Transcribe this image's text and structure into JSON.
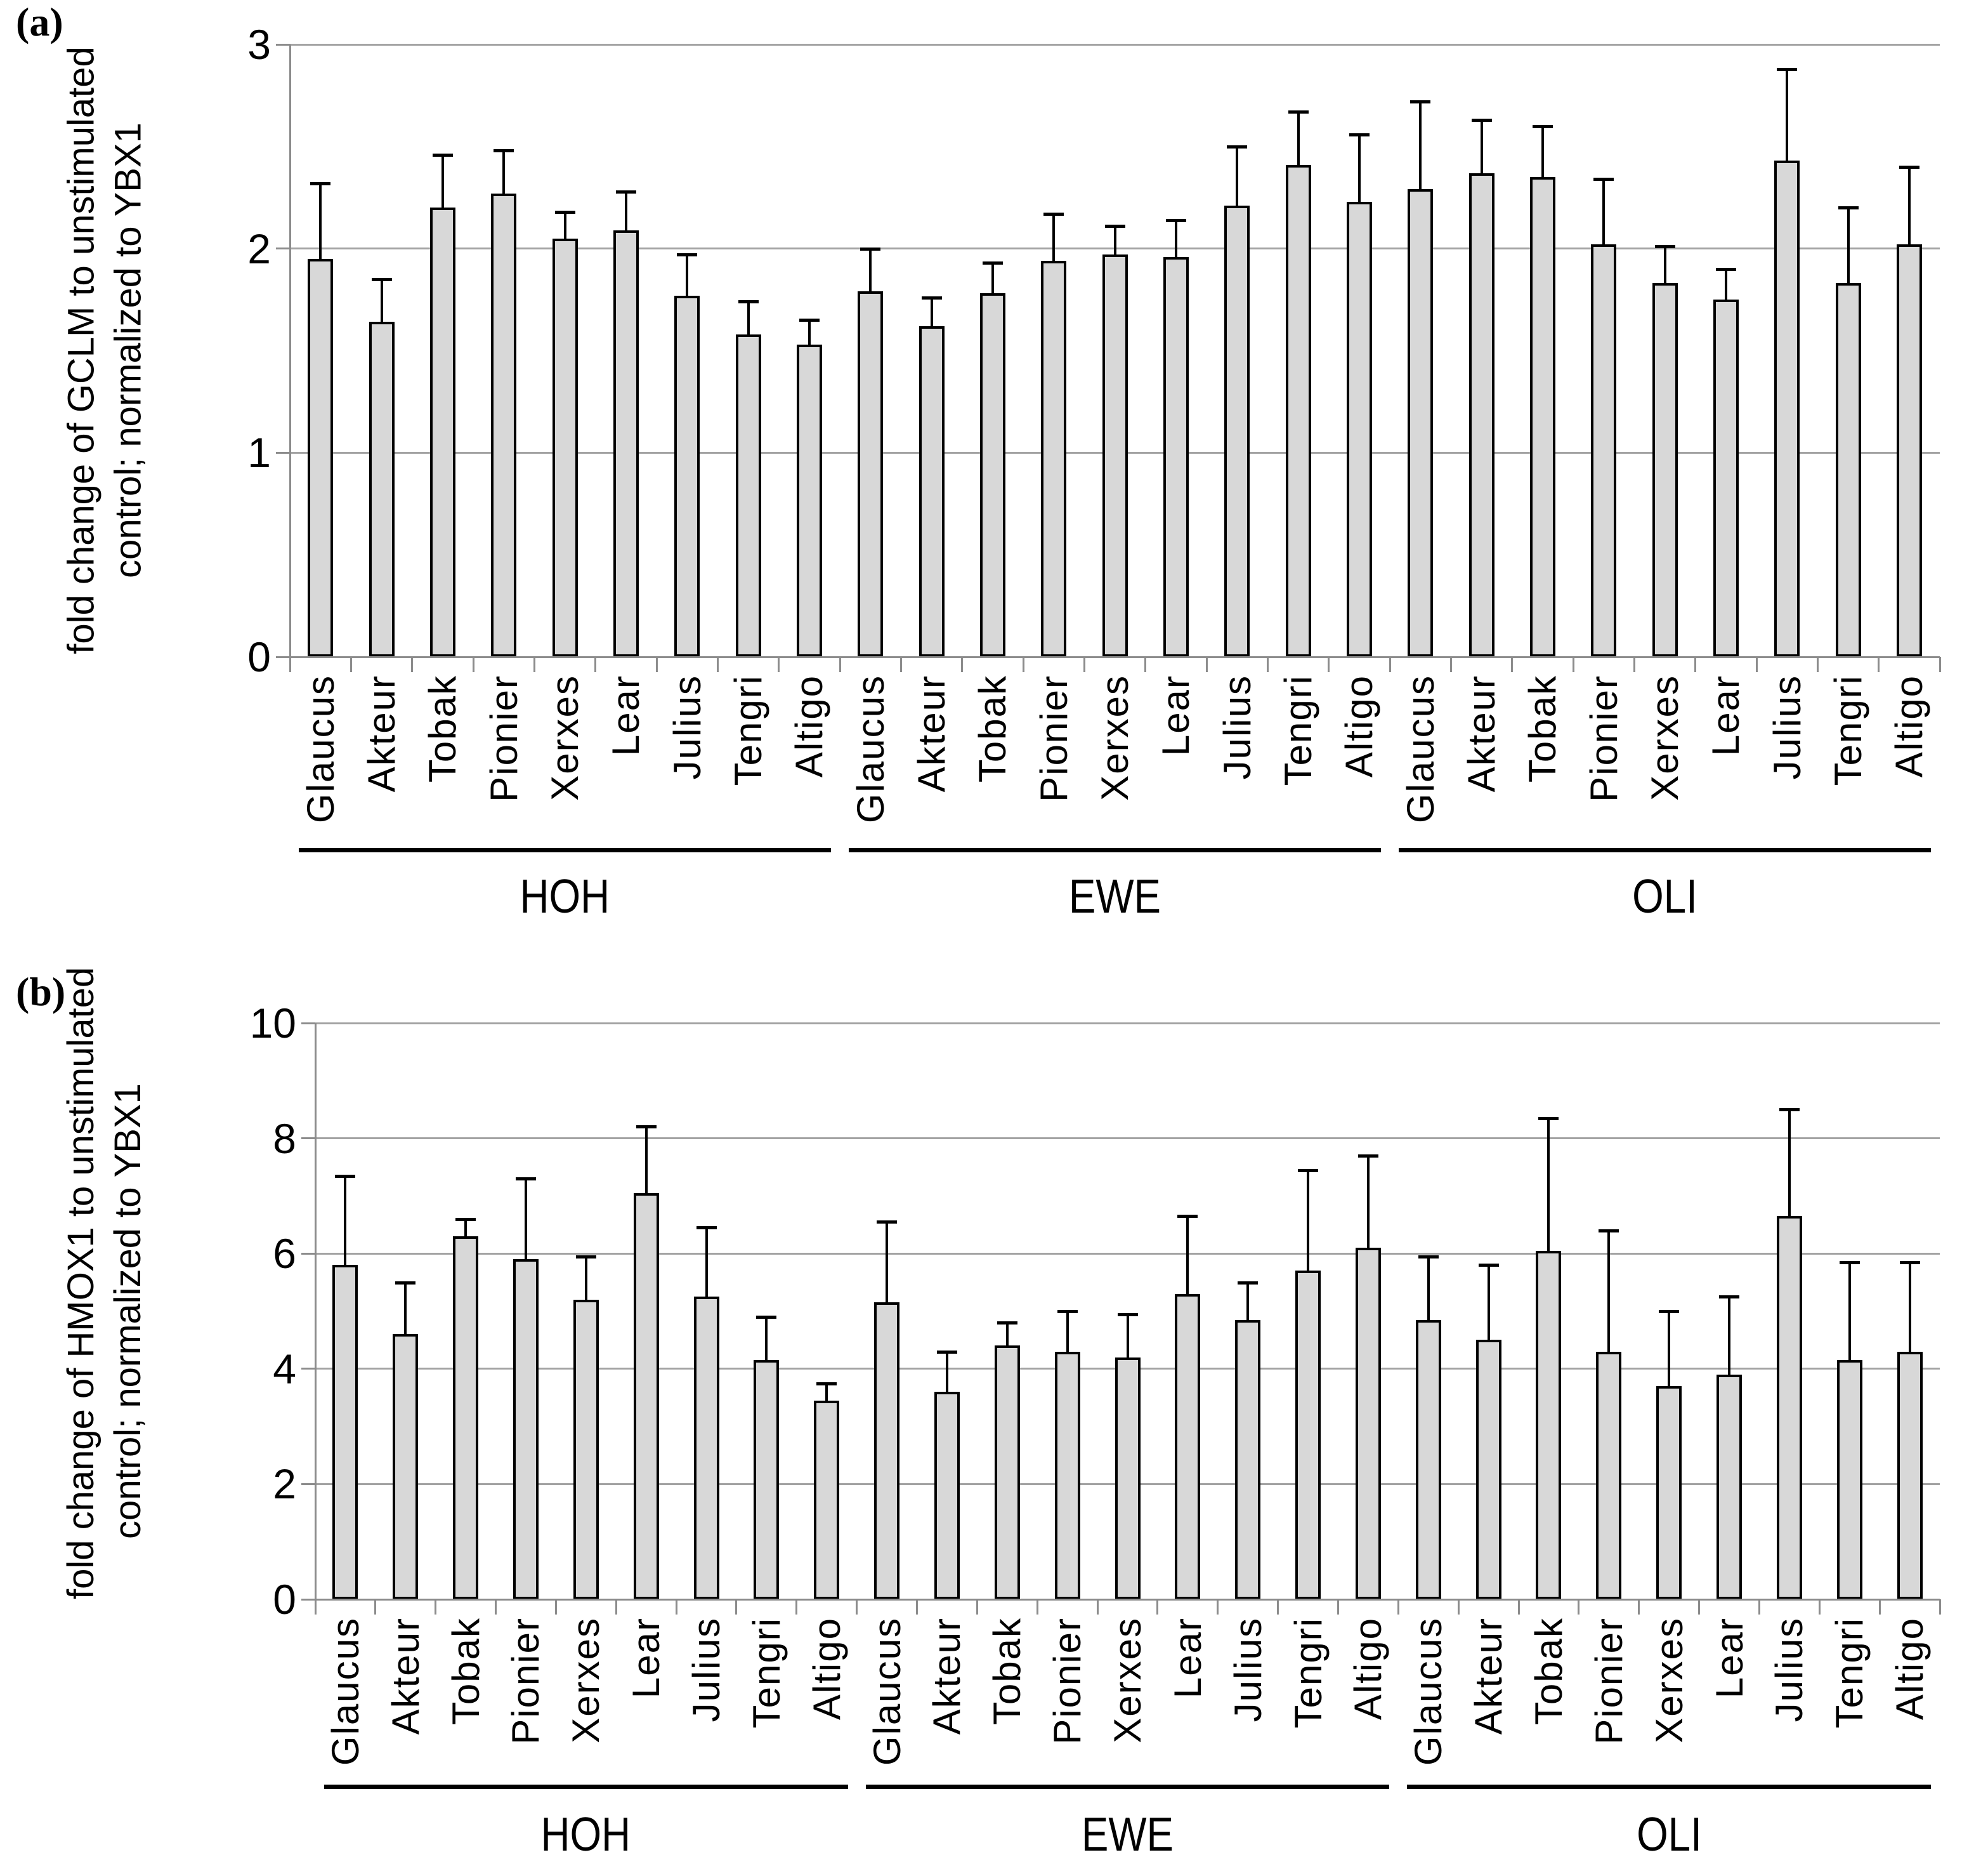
{
  "colors": {
    "bar_fill": "#d8d8d8",
    "bar_border": "#000000",
    "error_bar": "#000000",
    "gridline": "#a3a3a3",
    "axis": "#8c8c8c",
    "text": "#000000",
    "background": "#ffffff"
  },
  "panels": [
    {
      "letter": "(a)",
      "ylabel_line1": "fold change of GCLM to unstimulated",
      "ylabel_line2": "control; normalized to YBX1"
    },
    {
      "letter": "(b)",
      "ylabel_line1": "fold change of HMOX1 to unstimulated",
      "ylabel_line2": "control; normalized to YBX1"
    }
  ],
  "chart_data": [
    {
      "panel": "a",
      "type": "bar",
      "title": "",
      "ylabel": "fold change of GCLM to unstimulated control; normalized to YBX1",
      "xlabel": "",
      "ylim": [
        0,
        3
      ],
      "yticks": [
        0,
        1,
        2,
        3
      ],
      "grid": true,
      "legend": "none",
      "error_bars": "upper only",
      "categories": [
        "Glaucus",
        "Akteur",
        "Tobak",
        "Pionier",
        "Xerxes",
        "Lear",
        "Julius",
        "Tengri",
        "Altigo"
      ],
      "groups": [
        {
          "name": "HOH",
          "values": [
            1.95,
            1.64,
            2.2,
            2.27,
            2.05,
            2.09,
            1.77,
            1.58,
            1.53
          ],
          "errors_plus": [
            0.37,
            0.21,
            0.26,
            0.21,
            0.13,
            0.19,
            0.2,
            0.16,
            0.12
          ]
        },
        {
          "name": "EWE",
          "values": [
            1.79,
            1.62,
            1.78,
            1.94,
            1.97,
            1.96,
            2.21,
            2.41,
            2.23
          ],
          "errors_plus": [
            0.21,
            0.14,
            0.15,
            0.23,
            0.14,
            0.18,
            0.29,
            0.26,
            0.33
          ]
        },
        {
          "name": "OLI",
          "values": [
            2.29,
            2.37,
            2.35,
            2.02,
            1.83,
            1.75,
            2.43,
            1.83,
            2.02
          ],
          "errors_plus": [
            0.43,
            0.26,
            0.25,
            0.32,
            0.18,
            0.15,
            0.45,
            0.37,
            0.38
          ]
        }
      ]
    },
    {
      "panel": "b",
      "type": "bar",
      "title": "",
      "ylabel": "fold change of HMOX1 to unstimulated control; normalized to YBX1",
      "xlabel": "",
      "ylim": [
        0,
        10
      ],
      "yticks": [
        0,
        2,
        4,
        6,
        8,
        10
      ],
      "grid": true,
      "legend": "none",
      "error_bars": "upper only",
      "categories": [
        "Glaucus",
        "Akteur",
        "Tobak",
        "Pionier",
        "Xerxes",
        "Lear",
        "Julius",
        "Tengri",
        "Altigo"
      ],
      "groups": [
        {
          "name": "HOH",
          "values": [
            5.8,
            4.6,
            6.3,
            5.9,
            5.2,
            7.05,
            5.25,
            4.15,
            3.45
          ],
          "errors_plus": [
            1.55,
            0.9,
            0.3,
            1.4,
            0.75,
            1.15,
            1.2,
            0.75,
            0.3
          ]
        },
        {
          "name": "EWE",
          "values": [
            5.15,
            3.6,
            4.4,
            4.3,
            4.2,
            5.3,
            4.85,
            5.7,
            6.1
          ],
          "errors_plus": [
            1.4,
            0.7,
            0.4,
            0.7,
            0.75,
            1.35,
            0.65,
            1.75,
            1.6
          ]
        },
        {
          "name": "OLI",
          "values": [
            4.85,
            4.5,
            6.05,
            4.3,
            3.7,
            3.9,
            6.65,
            4.15,
            4.3
          ],
          "errors_plus": [
            1.1,
            1.3,
            2.3,
            2.1,
            1.3,
            1.35,
            1.85,
            1.7,
            1.55
          ]
        }
      ]
    }
  ]
}
